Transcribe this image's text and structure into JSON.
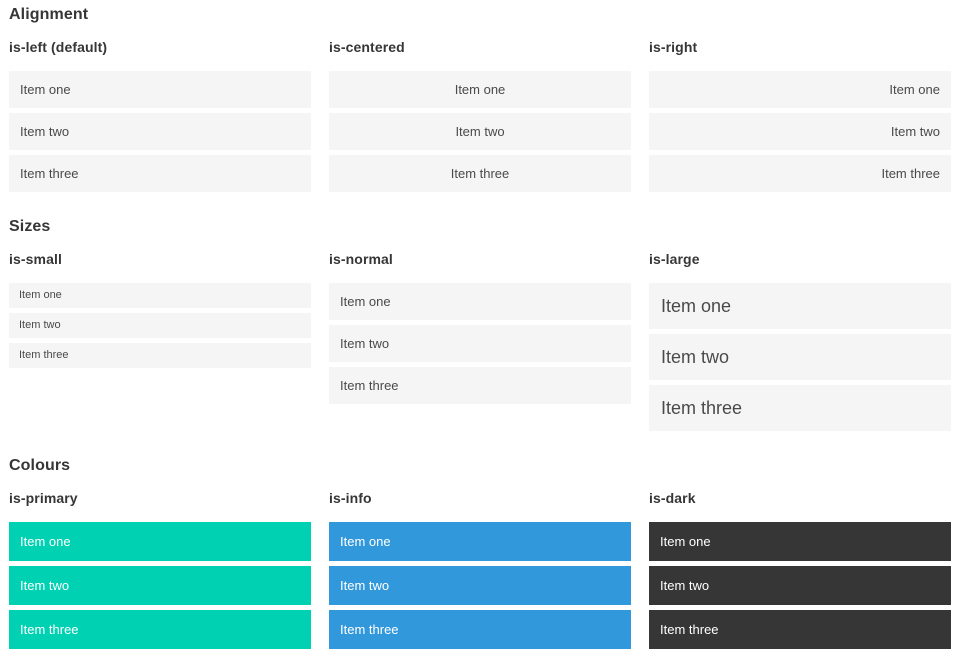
{
  "sections": [
    {
      "title": "Alignment",
      "columns": [
        {
          "subtitle": "is-left (default)",
          "items": [
            "Item one",
            "Item two",
            "Item three"
          ]
        },
        {
          "subtitle": "is-centered",
          "items": [
            "Item one",
            "Item two",
            "Item three"
          ]
        },
        {
          "subtitle": "is-right",
          "items": [
            "Item one",
            "Item two",
            "Item three"
          ]
        }
      ]
    },
    {
      "title": "Sizes",
      "columns": [
        {
          "subtitle": "is-small",
          "items": [
            "Item one",
            "Item two",
            "Item three"
          ]
        },
        {
          "subtitle": "is-normal",
          "items": [
            "Item one",
            "Item two",
            "Item three"
          ]
        },
        {
          "subtitle": "is-large",
          "items": [
            "Item one",
            "Item two",
            "Item three"
          ]
        }
      ]
    },
    {
      "title": "Colours",
      "columns": [
        {
          "subtitle": "is-primary",
          "items": [
            "Item one",
            "Item two",
            "Item three"
          ]
        },
        {
          "subtitle": "is-info",
          "items": [
            "Item one",
            "Item two",
            "Item three"
          ]
        },
        {
          "subtitle": "is-dark",
          "items": [
            "Item one",
            "Item two",
            "Item three"
          ]
        }
      ]
    }
  ],
  "colors": {
    "primary": "#00d1b2",
    "info": "#3298dc",
    "dark": "#363636",
    "item_background": "#f5f5f5",
    "heading_text": "#363636",
    "item_text": "#4a4a4a",
    "text_on_color": "#ffffff"
  }
}
